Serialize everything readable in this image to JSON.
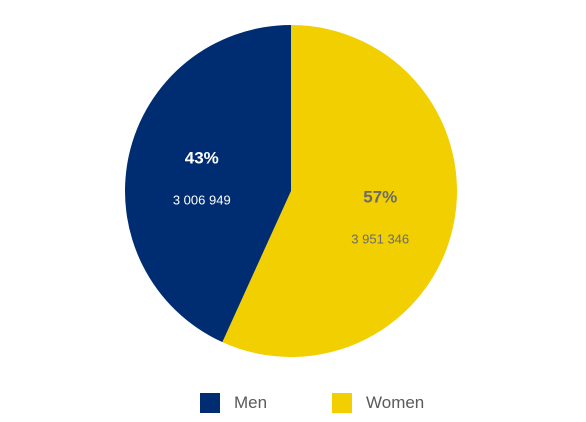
{
  "chart_data": {
    "type": "pie",
    "title": "",
    "slices": [
      {
        "name": "Men",
        "value": 3006949,
        "percent_label": "43%",
        "value_label": "3 006 949",
        "color": "#002D72",
        "text_color": "#ffffff"
      },
      {
        "name": "Women",
        "value": 3951346,
        "percent_label": "57%",
        "value_label": "3 951 346",
        "color": "#F2CF00",
        "text_color": "#6b6b6b"
      }
    ],
    "legend": {
      "position": "bottom",
      "items": [
        {
          "label": "Men",
          "color": "#002D72"
        },
        {
          "label": "Women",
          "color": "#F2CF00"
        }
      ]
    }
  }
}
